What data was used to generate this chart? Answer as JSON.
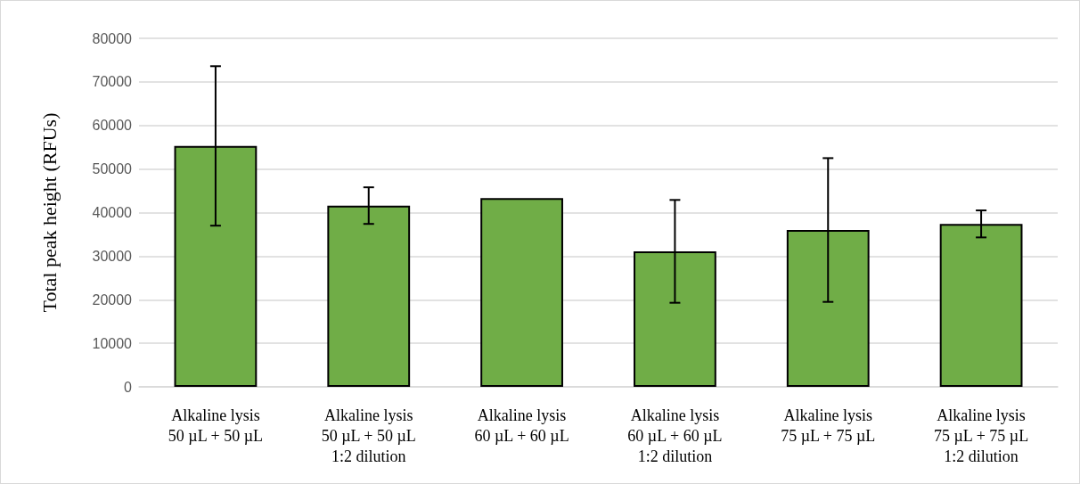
{
  "chart_data": {
    "type": "bar",
    "ylabel": "Total peak height (RFUs)",
    "categories": [
      "Alkaline lysis\n50 µL + 50 µL",
      "Alkaline lysis\n50 µL + 50 µL\n1:2 dilution",
      "Alkaline lysis\n60 µL + 60 µL",
      "Alkaline lysis\n60 µL + 60 µL\n1:2 dilution",
      "Alkaline lysis\n75 µL + 75 µL",
      "Alkaline lysis\n75 µL + 75 µL\n1:2 dilution"
    ],
    "values": [
      55300,
      41600,
      43300,
      31100,
      36000,
      37400
    ],
    "errors": [
      18300,
      4200,
      null,
      11800,
      16500,
      3100
    ],
    "color": "#70ad47",
    "ylim": [
      0,
      80000
    ],
    "yticks": [
      0,
      10000,
      20000,
      30000,
      40000,
      50000,
      60000,
      70000,
      80000
    ],
    "grid": "y"
  }
}
